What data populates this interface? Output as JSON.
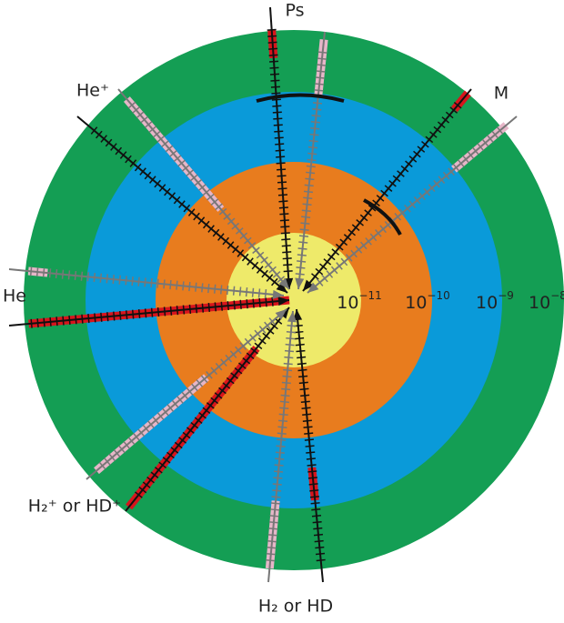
{
  "systems": [
    {
      "label": "Ps"
    },
    {
      "label": "M"
    },
    {
      "label": "He⁺"
    },
    {
      "label": "He"
    },
    {
      "label": "H₂⁺ or HD⁺"
    },
    {
      "label": "H₂ or HD"
    }
  ],
  "scale_labels": [
    {
      "base": "10",
      "exponent": "−11"
    },
    {
      "base": "10",
      "exponent": "−10"
    },
    {
      "base": "10",
      "exponent": "−9"
    },
    {
      "base": "10",
      "exponent": "−8"
    }
  ]
}
